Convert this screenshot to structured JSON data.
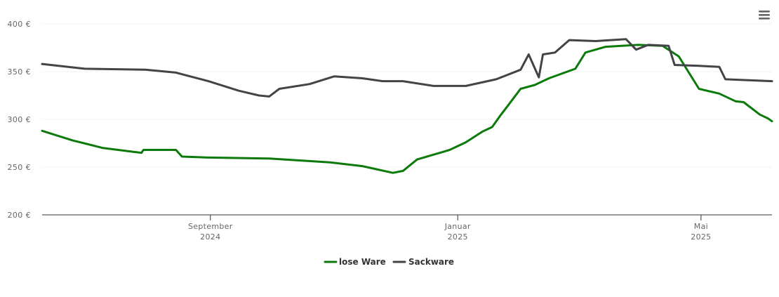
{
  "menu": {
    "icon": "hamburger-menu-icon"
  },
  "chart_data": {
    "type": "line",
    "title": "",
    "xlabel": "",
    "ylabel": "",
    "ylim": [
      200,
      400
    ],
    "xlim": [
      "2024-06-10",
      "2025-06-05"
    ],
    "yticks": [
      {
        "value": 200,
        "label": "200 €"
      },
      {
        "value": 250,
        "label": "250 €"
      },
      {
        "value": 300,
        "label": "300 €"
      },
      {
        "value": 350,
        "label": "350 €"
      },
      {
        "value": 400,
        "label": "400 €"
      }
    ],
    "xticks": [
      {
        "date": "2024-09-01",
        "line1": "September",
        "line2": "2024"
      },
      {
        "date": "2025-01-01",
        "line1": "Januar",
        "line2": "2025"
      },
      {
        "date": "2025-05-01",
        "line1": "Mai",
        "line2": "2025"
      }
    ],
    "grid": true,
    "legend": "bottom-center",
    "series": [
      {
        "name": "lose Ware",
        "color": "#0b7a0b",
        "points": [
          [
            "2024-06-10",
            288
          ],
          [
            "2024-06-25",
            278
          ],
          [
            "2024-07-10",
            270
          ],
          [
            "2024-07-25",
            266
          ],
          [
            "2024-07-29",
            265
          ],
          [
            "2024-07-30",
            268
          ],
          [
            "2024-08-15",
            268
          ],
          [
            "2024-08-18",
            261
          ],
          [
            "2024-08-31",
            260
          ],
          [
            "2024-09-30",
            259
          ],
          [
            "2024-10-30",
            255
          ],
          [
            "2024-11-15",
            251
          ],
          [
            "2024-11-30",
            244
          ],
          [
            "2024-12-05",
            246
          ],
          [
            "2024-12-12",
            258
          ],
          [
            "2024-12-20",
            263
          ],
          [
            "2024-12-28",
            268
          ],
          [
            "2025-01-05",
            276
          ],
          [
            "2025-01-13",
            287
          ],
          [
            "2025-01-18",
            292
          ],
          [
            "2025-01-22",
            304
          ],
          [
            "2025-01-26",
            315
          ],
          [
            "2025-02-01",
            332
          ],
          [
            "2025-02-08",
            336
          ],
          [
            "2025-02-15",
            343
          ],
          [
            "2025-02-28",
            353
          ],
          [
            "2025-03-05",
            370
          ],
          [
            "2025-03-15",
            376
          ],
          [
            "2025-03-31",
            378
          ],
          [
            "2025-04-12",
            377
          ],
          [
            "2025-04-20",
            366
          ],
          [
            "2025-04-30",
            332
          ],
          [
            "2025-05-10",
            327
          ],
          [
            "2025-05-18",
            319
          ],
          [
            "2025-05-22",
            318
          ],
          [
            "2025-05-30",
            305
          ],
          [
            "2025-06-03",
            301
          ],
          [
            "2025-06-05",
            298
          ]
        ]
      },
      {
        "name": "Sackware",
        "color": "#434348",
        "points": [
          [
            "2024-06-10",
            358
          ],
          [
            "2024-07-01",
            353
          ],
          [
            "2024-07-31",
            352
          ],
          [
            "2024-08-15",
            349
          ],
          [
            "2024-08-31",
            340
          ],
          [
            "2024-09-15",
            330
          ],
          [
            "2024-09-25",
            325
          ],
          [
            "2024-09-30",
            324
          ],
          [
            "2024-10-05",
            332
          ],
          [
            "2024-10-20",
            337
          ],
          [
            "2024-11-01",
            345
          ],
          [
            "2024-11-15",
            343
          ],
          [
            "2024-11-25",
            340
          ],
          [
            "2024-12-05",
            340
          ],
          [
            "2024-12-20",
            335
          ],
          [
            "2025-01-05",
            335
          ],
          [
            "2025-01-20",
            342
          ],
          [
            "2025-02-01",
            352
          ],
          [
            "2025-02-05",
            368
          ],
          [
            "2025-02-10",
            344
          ],
          [
            "2025-02-12",
            368
          ],
          [
            "2025-02-18",
            370
          ],
          [
            "2025-02-25",
            383
          ],
          [
            "2025-03-10",
            382
          ],
          [
            "2025-03-25",
            384
          ],
          [
            "2025-03-30",
            373
          ],
          [
            "2025-04-05",
            378
          ],
          [
            "2025-04-15",
            377
          ],
          [
            "2025-04-18",
            357
          ],
          [
            "2025-04-30",
            356
          ],
          [
            "2025-05-10",
            355
          ],
          [
            "2025-05-13",
            342
          ],
          [
            "2025-06-05",
            340
          ]
        ]
      }
    ]
  }
}
